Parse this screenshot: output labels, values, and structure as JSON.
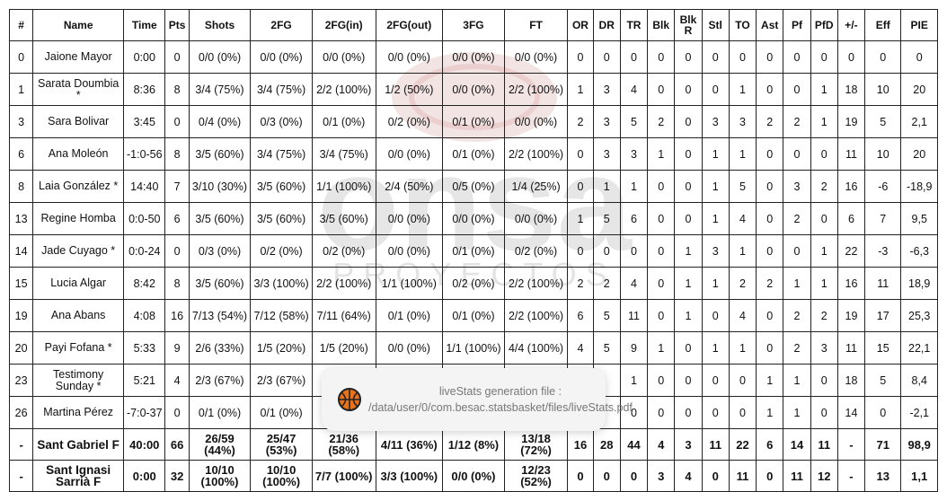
{
  "watermark": {
    "text": "onsa",
    "subtext": "PROYECTOS"
  },
  "headers": [
    "#",
    "Name",
    "Time",
    "Pts",
    "Shots",
    "2FG",
    "2FG(in)",
    "2FG(out)",
    "3FG",
    "FT",
    "OR",
    "DR",
    "TR",
    "Blk",
    "Blk R",
    "Stl",
    "TO",
    "Ast",
    "Pf",
    "PfD",
    "+/-",
    "Eff",
    "PIE"
  ],
  "rows": [
    [
      "0",
      "Jaione Mayor",
      "0:00",
      "0",
      "0/0 (0%)",
      "0/0 (0%)",
      "0/0 (0%)",
      "0/0 (0%)",
      "0/0 (0%)",
      "0/0 (0%)",
      "0",
      "0",
      "0",
      "0",
      "0",
      "0",
      "0",
      "0",
      "0",
      "0",
      "0",
      "0",
      "0"
    ],
    [
      "1",
      "Sarata Doumbia *",
      "8:36",
      "8",
      "3/4 (75%)",
      "3/4 (75%)",
      "2/2 (100%)",
      "1/2 (50%)",
      "0/0 (0%)",
      "2/2 (100%)",
      "1",
      "3",
      "4",
      "0",
      "0",
      "0",
      "1",
      "0",
      "0",
      "1",
      "18",
      "10",
      "20"
    ],
    [
      "3",
      "Sara Bolivar",
      "3:45",
      "0",
      "0/4 (0%)",
      "0/3 (0%)",
      "0/1 (0%)",
      "0/2 (0%)",
      "0/1 (0%)",
      "0/0 (0%)",
      "2",
      "3",
      "5",
      "2",
      "0",
      "3",
      "3",
      "2",
      "2",
      "1",
      "19",
      "5",
      "2,1"
    ],
    [
      "6",
      "Ana Moleón",
      "-1:0-56",
      "8",
      "3/5 (60%)",
      "3/4 (75%)",
      "3/4 (75%)",
      "0/0 (0%)",
      "0/1 (0%)",
      "2/2 (100%)",
      "0",
      "3",
      "3",
      "1",
      "0",
      "1",
      "1",
      "0",
      "0",
      "0",
      "11",
      "10",
      "20"
    ],
    [
      "8",
      "Laia González *",
      "14:40",
      "7",
      "3/10 (30%)",
      "3/5 (60%)",
      "1/1 (100%)",
      "2/4 (50%)",
      "0/5 (0%)",
      "1/4 (25%)",
      "0",
      "1",
      "1",
      "0",
      "0",
      "1",
      "5",
      "0",
      "3",
      "2",
      "16",
      "-6",
      "-18,9"
    ],
    [
      "13",
      "Regine Homba",
      "0:0-50",
      "6",
      "3/5 (60%)",
      "3/5 (60%)",
      "3/5 (60%)",
      "0/0 (0%)",
      "0/0 (0%)",
      "0/0 (0%)",
      "1",
      "5",
      "6",
      "0",
      "0",
      "1",
      "4",
      "0",
      "2",
      "0",
      "6",
      "7",
      "9,5"
    ],
    [
      "14",
      "Jade Cuyago *",
      "0:0-24",
      "0",
      "0/3 (0%)",
      "0/2 (0%)",
      "0/2 (0%)",
      "0/0 (0%)",
      "0/1 (0%)",
      "0/2 (0%)",
      "0",
      "0",
      "0",
      "0",
      "1",
      "3",
      "1",
      "0",
      "0",
      "1",
      "22",
      "-3",
      "-6,3"
    ],
    [
      "15",
      "Lucia Algar",
      "8:42",
      "8",
      "3/5 (60%)",
      "3/3 (100%)",
      "2/2 (100%)",
      "1/1 (100%)",
      "0/2 (0%)",
      "2/2 (100%)",
      "2",
      "2",
      "4",
      "0",
      "1",
      "1",
      "2",
      "2",
      "1",
      "1",
      "16",
      "11",
      "18,9"
    ],
    [
      "19",
      "Ana Abans",
      "4:08",
      "16",
      "7/13 (54%)",
      "7/12 (58%)",
      "7/11 (64%)",
      "0/1 (0%)",
      "0/1 (0%)",
      "2/2 (100%)",
      "6",
      "5",
      "11",
      "0",
      "1",
      "0",
      "4",
      "0",
      "2",
      "2",
      "19",
      "17",
      "25,3"
    ],
    [
      "20",
      "Payi Fofana *",
      "5:33",
      "9",
      "2/6 (33%)",
      "1/5 (20%)",
      "1/5 (20%)",
      "0/0 (0%)",
      "1/1 (100%)",
      "4/4 (100%)",
      "4",
      "5",
      "9",
      "1",
      "0",
      "1",
      "1",
      "0",
      "2",
      "3",
      "11",
      "15",
      "22,1"
    ],
    [
      "23",
      "Testimony Sunday *",
      "5:21",
      "4",
      "2/3 (67%)",
      "2/3 (67%)",
      "",
      "",
      "",
      "",
      "",
      "",
      "1",
      "0",
      "0",
      "0",
      "0",
      "1",
      "1",
      "0",
      "18",
      "5",
      "8,4"
    ],
    [
      "26",
      "Martina Pérez",
      "-7:0-37",
      "0",
      "0/1 (0%)",
      "0/1 (0%)",
      "",
      "",
      "",
      "",
      "",
      "",
      "0",
      "0",
      "0",
      "0",
      "0",
      "1",
      "1",
      "0",
      "14",
      "0",
      "-2,1"
    ]
  ],
  "totals": [
    [
      "-",
      "Sant Gabriel F",
      "40:00",
      "66",
      "26/59 (44%)",
      "25/47 (53%)",
      "21/36 (58%)",
      "4/11 (36%)",
      "1/12 (8%)",
      "13/18 (72%)",
      "16",
      "28",
      "44",
      "4",
      "3",
      "11",
      "22",
      "6",
      "14",
      "11",
      "-",
      "71",
      "98,9"
    ],
    [
      "-",
      "Sant Ignasi Sarrià F",
      "0:00",
      "32",
      "10/10 (100%)",
      "10/10 (100%)",
      "7/7 (100%)",
      "3/3 (100%)",
      "0/0 (0%)",
      "12/23 (52%)",
      "0",
      "0",
      "0",
      "3",
      "4",
      "0",
      "11",
      "0",
      "11",
      "12",
      "-",
      "13",
      "1,1"
    ]
  ],
  "toast": {
    "icon": "basketball-app-icon",
    "message": "liveStats generation file : /data/user/0/com.besac.statsbasket/files/liveStats.pdf"
  }
}
